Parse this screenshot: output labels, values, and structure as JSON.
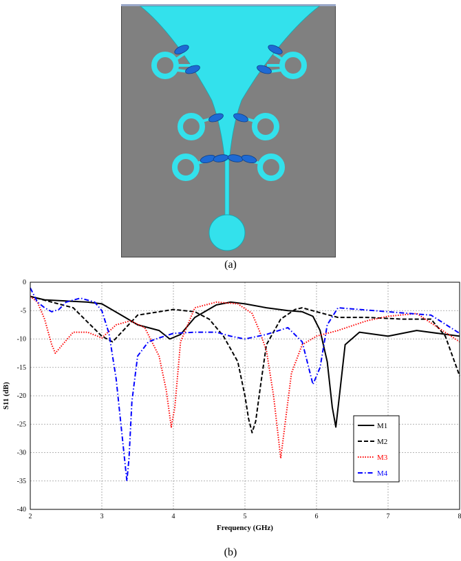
{
  "captions": {
    "a": "(a)",
    "b": "(b)"
  },
  "antenna": {
    "substrate_color": "#808080",
    "patch_color": "#33e1ec",
    "diode_color": "#1e6ad4"
  },
  "chart_data": {
    "type": "line",
    "title": "",
    "xlabel": "Frequency (GHz)",
    "ylabel": "S11 (dB)",
    "xlim": [
      2,
      8
    ],
    "ylim": [
      -40,
      0
    ],
    "xticks": [
      2,
      3,
      4,
      5,
      6,
      7,
      8
    ],
    "yticks": [
      0,
      -5,
      -10,
      -15,
      -20,
      -25,
      -30,
      -35,
      -40
    ],
    "grid": true,
    "legend_position": "bottom-right",
    "series": [
      {
        "name": "M1",
        "color": "#000000",
        "style": "solid",
        "x": [
          2.0,
          2.2,
          2.5,
          2.8,
          3.0,
          3.3,
          3.5,
          3.8,
          3.95,
          4.1,
          4.3,
          4.6,
          4.8,
          5.0,
          5.3,
          5.6,
          5.8,
          5.95,
          6.05,
          6.15,
          6.22,
          6.27,
          6.32,
          6.4,
          6.6,
          7.0,
          7.4,
          7.7,
          8.0
        ],
        "y": [
          -2.5,
          -3.1,
          -3.3,
          -3.5,
          -3.8,
          -6.0,
          -7.5,
          -8.5,
          -10.0,
          -9.2,
          -6.2,
          -4.0,
          -3.5,
          -3.8,
          -4.5,
          -5.0,
          -5.2,
          -6.0,
          -8.5,
          -14.0,
          -22.0,
          -25.5,
          -20.0,
          -11.0,
          -8.8,
          -9.5,
          -8.5,
          -9.0,
          -9.5
        ]
      },
      {
        "name": "M2",
        "color": "#000000",
        "style": "dashed",
        "x": [
          2.0,
          2.3,
          2.6,
          2.8,
          3.0,
          3.15,
          3.3,
          3.5,
          3.8,
          4.0,
          4.3,
          4.5,
          4.7,
          4.9,
          5.0,
          5.05,
          5.1,
          5.15,
          5.22,
          5.3,
          5.5,
          5.7,
          5.8,
          6.0,
          6.3,
          6.7,
          7.2,
          7.6,
          7.8,
          8.0
        ],
        "y": [
          -2.5,
          -3.5,
          -4.5,
          -7.0,
          -9.5,
          -10.5,
          -8.5,
          -5.8,
          -5.2,
          -4.8,
          -5.2,
          -6.5,
          -9.5,
          -14.0,
          -20.0,
          -24.0,
          -26.5,
          -24.5,
          -18.0,
          -11.0,
          -6.5,
          -4.8,
          -4.5,
          -5.2,
          -6.2,
          -6.2,
          -6.5,
          -6.5,
          -9.5,
          -16.5
        ]
      },
      {
        "name": "M3",
        "color": "#ff0000",
        "style": "dotted",
        "x": [
          2.0,
          2.1,
          2.2,
          2.3,
          2.35,
          2.45,
          2.6,
          2.8,
          3.0,
          3.2,
          3.4,
          3.6,
          3.8,
          3.9,
          3.97,
          4.02,
          4.1,
          4.3,
          4.6,
          4.9,
          5.1,
          5.2,
          5.3,
          5.4,
          5.5,
          5.55,
          5.65,
          5.8,
          6.0,
          6.3,
          6.7,
          7.0,
          7.4,
          8.0
        ],
        "y": [
          -2.5,
          -3.5,
          -6.5,
          -11.0,
          -12.5,
          -11.0,
          -8.8,
          -8.8,
          -9.8,
          -7.5,
          -6.8,
          -8.0,
          -13.0,
          -19.0,
          -25.5,
          -22.0,
          -10.5,
          -4.5,
          -3.5,
          -3.8,
          -5.5,
          -8.5,
          -12.0,
          -20.0,
          -31.0,
          -26.0,
          -16.0,
          -11.0,
          -9.5,
          -8.5,
          -6.8,
          -6.0,
          -5.5,
          -10.5
        ]
      },
      {
        "name": "M4",
        "color": "#0000ff",
        "style": "dashdot",
        "x": [
          2.0,
          2.1,
          2.2,
          2.3,
          2.4,
          2.5,
          2.7,
          2.9,
          3.0,
          3.1,
          3.2,
          3.3,
          3.35,
          3.38,
          3.42,
          3.5,
          3.65,
          3.8,
          4.0,
          4.3,
          4.6,
          4.8,
          5.0,
          5.3,
          5.6,
          5.8,
          5.95,
          6.05,
          6.15,
          6.3,
          6.6,
          7.0,
          7.3,
          7.6,
          8.0
        ],
        "y": [
          -1.0,
          -3.5,
          -4.5,
          -5.2,
          -4.8,
          -3.5,
          -2.8,
          -3.5,
          -5.0,
          -9.0,
          -17.0,
          -29.0,
          -35.0,
          -31.0,
          -21.0,
          -13.0,
          -10.5,
          -9.8,
          -9.0,
          -8.8,
          -8.8,
          -9.5,
          -10.0,
          -9.2,
          -8.0,
          -10.5,
          -18.0,
          -15.0,
          -7.5,
          -4.5,
          -4.8,
          -5.2,
          -5.5,
          -5.8,
          -9.0
        ]
      }
    ]
  }
}
